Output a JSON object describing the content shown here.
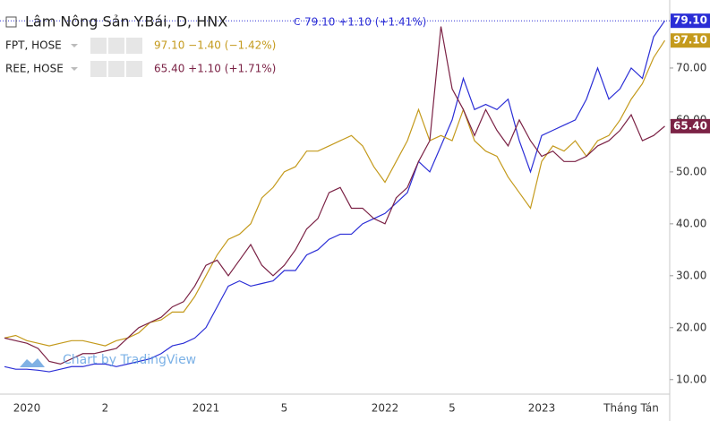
{
  "chart_data": {
    "type": "line",
    "title": "Lâm Nông Sản Y.Bái, D, HNX",
    "quote_prefix": "C",
    "quote": "79.10 +1.10 (+1.41%)",
    "watermark": "Chart by TradingView",
    "categories": [
      null,
      null,
      "2020",
      null,
      null,
      null,
      null,
      null,
      null,
      "2",
      null,
      null,
      null,
      null,
      null,
      null,
      null,
      null,
      "2021",
      null,
      null,
      null,
      null,
      null,
      null,
      "5",
      null,
      null,
      null,
      null,
      null,
      null,
      null,
      null,
      "2022",
      null,
      null,
      null,
      null,
      null,
      "5",
      null,
      null,
      null,
      null,
      null,
      null,
      null,
      "2023",
      null,
      null,
      null,
      null,
      null,
      null,
      null,
      "Tháng Tán",
      null,
      null,
      null
    ],
    "ylim": [
      7.2,
      83.1
    ],
    "yticks": [
      {
        "value": 10,
        "label": "10.00"
      },
      {
        "value": 20,
        "label": "20.00"
      },
      {
        "value": 30,
        "label": "30.00"
      },
      {
        "value": 40,
        "label": "40.00"
      },
      {
        "value": 50,
        "label": "50.00"
      },
      {
        "value": 60,
        "label": "60.00"
      },
      {
        "value": 70,
        "label": "70.00"
      }
    ],
    "series": [
      {
        "color": "#2b2ed6",
        "price": "79.10",
        "values": [
          12.5,
          12,
          12,
          11.8,
          11.5,
          12,
          12.5,
          12.5,
          13,
          13,
          12.5,
          13,
          13.5,
          14,
          15,
          16.5,
          17,
          18,
          20,
          24,
          28,
          29,
          28,
          28.5,
          29,
          31,
          31,
          34,
          35,
          37,
          38,
          38,
          40,
          41,
          42,
          44,
          46,
          52,
          50,
          55,
          60,
          68,
          62,
          63,
          62,
          64,
          56,
          50,
          57,
          58,
          59,
          60,
          64,
          70,
          64,
          66,
          70,
          68,
          76,
          79.1
        ]
      },
      {
        "name": "FPT, HOSE",
        "color": "#c49a1c",
        "price": "97.10",
        "quote": "97.10 −1.40 (−1.42%)",
        "values": [
          18,
          18.5,
          17.5,
          17,
          16.5,
          17,
          17.5,
          17.5,
          17,
          16.5,
          17.5,
          18,
          19,
          21,
          21.5,
          23,
          23,
          26,
          30,
          34,
          37,
          38,
          40,
          45,
          47,
          50,
          51,
          54,
          54,
          55,
          56,
          57,
          55,
          51,
          48,
          52,
          56,
          62,
          56,
          57,
          56,
          62,
          56,
          54,
          53,
          49,
          46,
          43,
          52,
          55,
          54,
          56,
          53,
          56,
          57,
          60,
          64,
          67,
          72,
          75.3
        ]
      },
      {
        "name": "REE, HOSE",
        "color": "#7b2245",
        "price": "65.40",
        "quote": "65.40 +1.10 (+1.71%)",
        "values": [
          18,
          17.5,
          17,
          16,
          13.5,
          13,
          14,
          15,
          15,
          15.5,
          16,
          18,
          20,
          21,
          22,
          24,
          25,
          28,
          32,
          33,
          30,
          33,
          36,
          32,
          30,
          32,
          35,
          39,
          41,
          46,
          47,
          43,
          43,
          41,
          40,
          45,
          47,
          52,
          56,
          78,
          66,
          62,
          57,
          62,
          58,
          55,
          60,
          56,
          53,
          54,
          52,
          52,
          53,
          55,
          56,
          58,
          61,
          56,
          57,
          58.8
        ]
      }
    ]
  }
}
